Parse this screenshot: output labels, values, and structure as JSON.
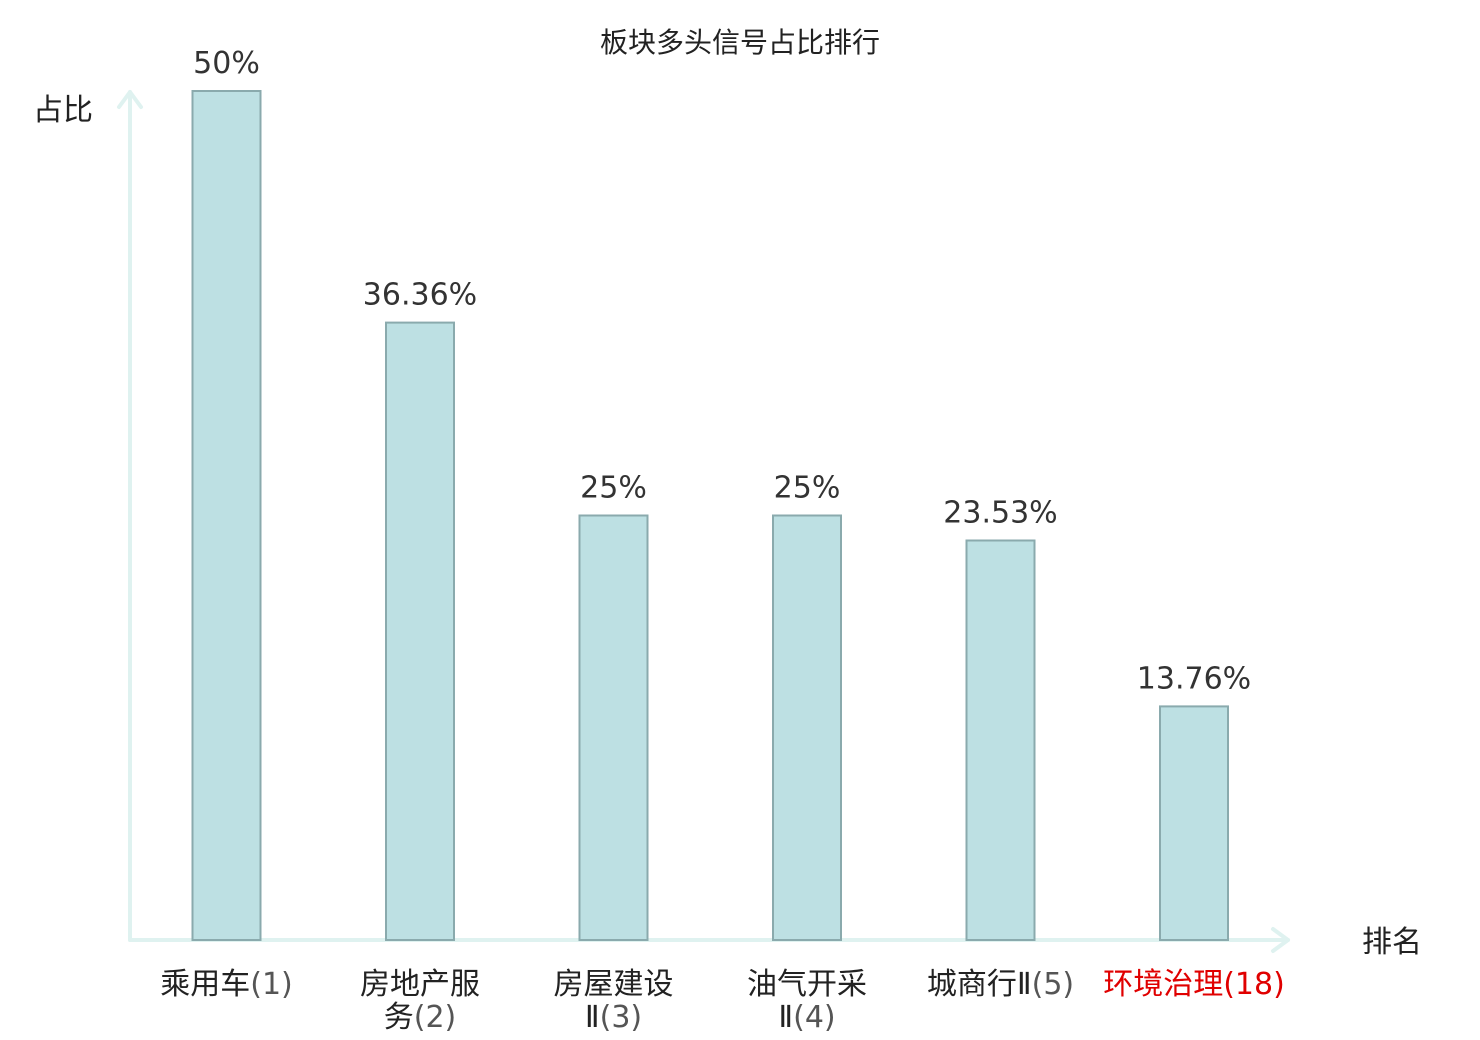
{
  "chart_data": {
    "type": "bar",
    "title": "板块多头信号占比排行",
    "ylabel": "占比",
    "xlabel": "排名",
    "ylim": [
      0,
      50
    ],
    "grid": false,
    "categories": [
      {
        "name_lines": [
          "乘用车"
        ],
        "rank_text": "(1)",
        "rank": 1,
        "highlight": false
      },
      {
        "name_lines": [
          "房地产服",
          "务"
        ],
        "rank_text": "(2)",
        "rank": 2,
        "highlight": false
      },
      {
        "name_lines": [
          "房屋建设",
          "Ⅱ"
        ],
        "rank_text": "(3)",
        "rank": 3,
        "highlight": false
      },
      {
        "name_lines": [
          "油气开采",
          "Ⅱ"
        ],
        "rank_text": "(4)",
        "rank": 4,
        "highlight": false
      },
      {
        "name_lines": [
          "城商行Ⅱ"
        ],
        "rank_text": "(5)",
        "rank": 5,
        "highlight": false
      },
      {
        "name_lines": [
          "环境治理"
        ],
        "rank_text": "(18)",
        "rank": 18,
        "highlight": true
      }
    ],
    "values": [
      50,
      36.36,
      25,
      25,
      23.53,
      13.76
    ],
    "value_labels": [
      "50%",
      "36.36%",
      "25%",
      "25%",
      "23.53%",
      "13.76%"
    ],
    "colors": {
      "bar_fill": "#bde0e3",
      "bar_stroke": "#8aaaad",
      "axis": "#dff2f0",
      "highlight": "#e00000"
    }
  }
}
